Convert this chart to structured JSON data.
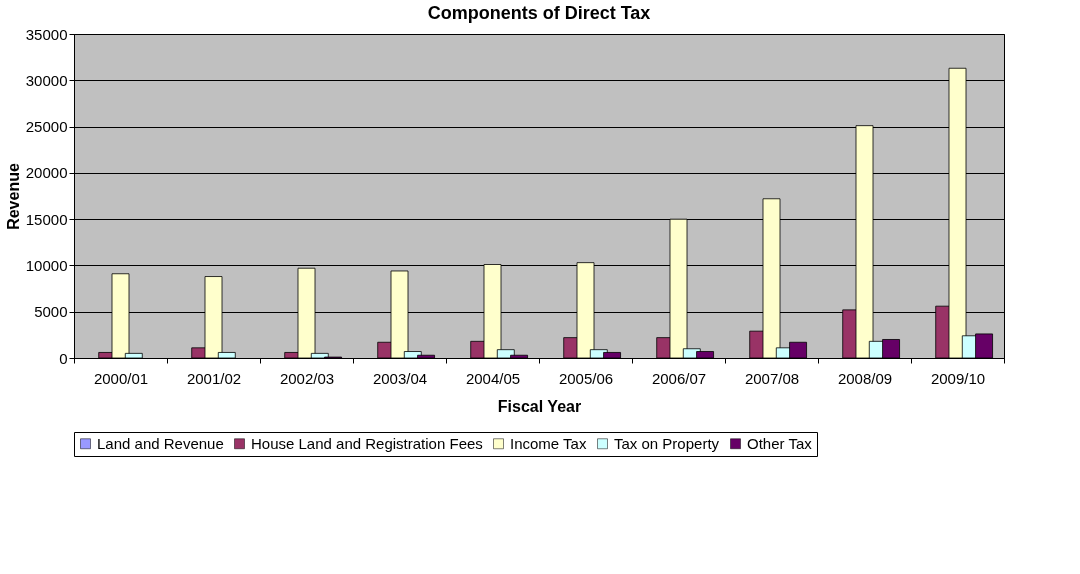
{
  "chart_data": {
    "type": "bar",
    "title": "Components of Direct Tax",
    "xlabel": "Fiscal Year",
    "ylabel": "Revenue",
    "categories": [
      "2000/01",
      "2001/02",
      "2002/03",
      "2003/04",
      "2004/05",
      "2005/06",
      "2006/07",
      "2007/08",
      "2008/09",
      "2009/10"
    ],
    "series": [
      {
        "name": "Land and Revenue",
        "color": "#9999ff",
        "values": [
          null,
          null,
          null,
          null,
          null,
          null,
          null,
          null,
          null,
          null
        ]
      },
      {
        "name": "House Land and Registration Fees",
        "color": "#993366",
        "values": [
          600,
          1100,
          600,
          1700,
          1800,
          2200,
          2200,
          2900,
          5200,
          5600
        ]
      },
      {
        "name": "Income Tax",
        "color": "#ffffcc",
        "values": [
          9100,
          8800,
          9700,
          9400,
          10100,
          10300,
          15000,
          17200,
          25100,
          31300
        ]
      },
      {
        "name": "Tax on Property",
        "color": "#ccffff",
        "values": [
          500,
          600,
          500,
          700,
          900,
          900,
          1000,
          1100,
          1800,
          2400
        ]
      },
      {
        "name": "Other Tax",
        "color": "#660066",
        "values": [
          null,
          null,
          100,
          300,
          300,
          600,
          700,
          1700,
          2000,
          2600
        ]
      }
    ],
    "ylim": [
      0,
      35000
    ],
    "yticks": [
      0,
      5000,
      10000,
      15000,
      20000,
      25000,
      30000,
      35000
    ],
    "grid": "y",
    "legend": "bottom"
  }
}
